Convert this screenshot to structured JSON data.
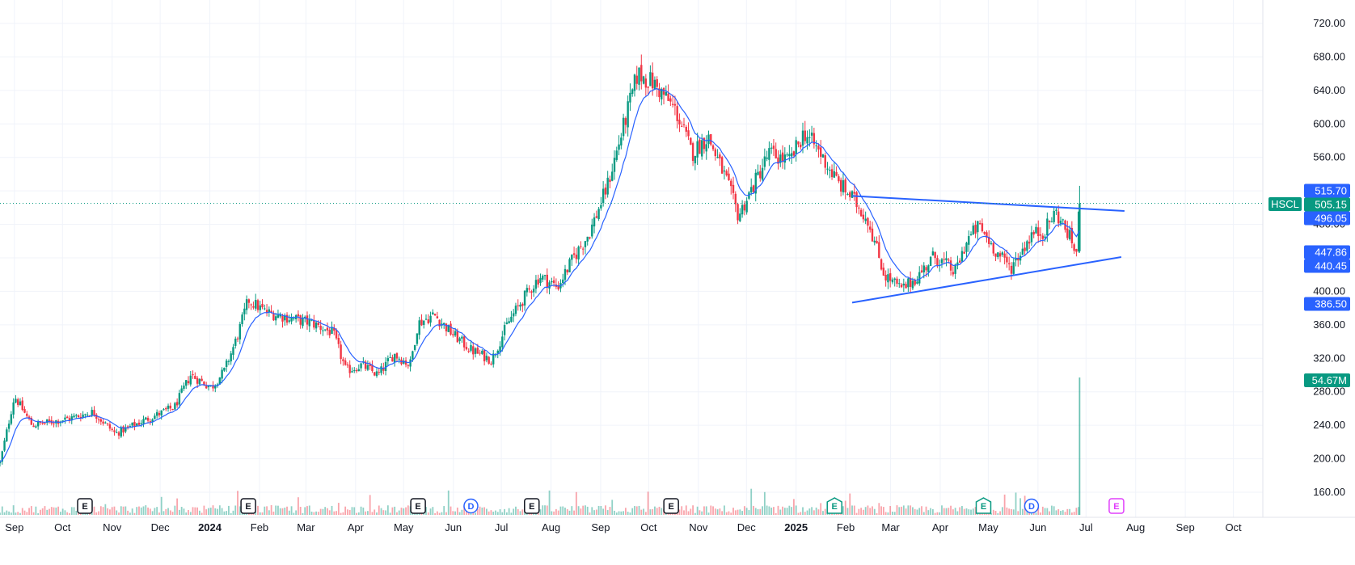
{
  "chart_data": {
    "type": "candlestick",
    "symbol": "HSCL",
    "x_range": [
      "2023-08-23",
      "2025-10-31"
    ],
    "y_range": [
      130,
      735
    ],
    "y_ticks": [
      "720.00",
      "680.00",
      "640.00",
      "600.00",
      "560.00",
      "520.00",
      "480.00",
      "440.00",
      "400.00",
      "360.00",
      "320.00",
      "280.00",
      "240.00",
      "200.00",
      "160.00"
    ],
    "month_labels": [
      {
        "label": "Sep",
        "date": "2023-09-01",
        "bold": false
      },
      {
        "label": "Oct",
        "date": "2023-10-01",
        "bold": false
      },
      {
        "label": "Nov",
        "date": "2023-11-01",
        "bold": false
      },
      {
        "label": "Dec",
        "date": "2023-12-01",
        "bold": false
      },
      {
        "label": "2024",
        "date": "2024-01-01",
        "bold": true
      },
      {
        "label": "Feb",
        "date": "2024-02-01",
        "bold": false
      },
      {
        "label": "Mar",
        "date": "2024-03-01",
        "bold": false
      },
      {
        "label": "Apr",
        "date": "2024-04-01",
        "bold": false
      },
      {
        "label": "May",
        "date": "2024-05-01",
        "bold": false
      },
      {
        "label": "Jun",
        "date": "2024-06-01",
        "bold": false
      },
      {
        "label": "Jul",
        "date": "2024-07-01",
        "bold": false
      },
      {
        "label": "Aug",
        "date": "2024-08-01",
        "bold": false
      },
      {
        "label": "Sep",
        "date": "2024-09-01",
        "bold": false
      },
      {
        "label": "Oct",
        "date": "2024-10-01",
        "bold": false
      },
      {
        "label": "Nov",
        "date": "2024-11-01",
        "bold": false
      },
      {
        "label": "Dec",
        "date": "2024-12-01",
        "bold": false
      },
      {
        "label": "2025",
        "date": "2025-01-01",
        "bold": true
      },
      {
        "label": "Feb",
        "date": "2025-02-01",
        "bold": false
      },
      {
        "label": "Mar",
        "date": "2025-03-01",
        "bold": false
      },
      {
        "label": "Apr",
        "date": "2025-04-01",
        "bold": false
      },
      {
        "label": "May",
        "date": "2025-05-01",
        "bold": false
      },
      {
        "label": "Jun",
        "date": "2025-06-01",
        "bold": false
      },
      {
        "label": "Jul",
        "date": "2025-07-01",
        "bold": false
      },
      {
        "label": "Aug",
        "date": "2025-08-01",
        "bold": false
      },
      {
        "label": "Sep",
        "date": "2025-09-01",
        "bold": false
      },
      {
        "label": "Oct",
        "date": "2025-10-01",
        "bold": false
      }
    ],
    "price_keypoints": [
      [
        "2023-08-23",
        195
      ],
      [
        "2023-09-01",
        275
      ],
      [
        "2023-09-12",
        240
      ],
      [
        "2023-10-05",
        248
      ],
      [
        "2023-10-20",
        256
      ],
      [
        "2023-11-03",
        230
      ],
      [
        "2023-11-20",
        245
      ],
      [
        "2023-12-10",
        262
      ],
      [
        "2023-12-20",
        300
      ],
      [
        "2024-01-02",
        285
      ],
      [
        "2024-01-10",
        305
      ],
      [
        "2024-01-18",
        345
      ],
      [
        "2024-01-25",
        390
      ],
      [
        "2024-02-05",
        375
      ],
      [
        "2024-02-20",
        368
      ],
      [
        "2024-03-05",
        362
      ],
      [
        "2024-03-18",
        350
      ],
      [
        "2024-03-26",
        305
      ],
      [
        "2024-04-05",
        312
      ],
      [
        "2024-04-15",
        300
      ],
      [
        "2024-04-25",
        325
      ],
      [
        "2024-05-05",
        312
      ],
      [
        "2024-05-10",
        362
      ],
      [
        "2024-05-20",
        372
      ],
      [
        "2024-05-31",
        350
      ],
      [
        "2024-06-12",
        330
      ],
      [
        "2024-06-25",
        318
      ],
      [
        "2024-07-05",
        362
      ],
      [
        "2024-07-15",
        392
      ],
      [
        "2024-07-25",
        418
      ],
      [
        "2024-08-05",
        405
      ],
      [
        "2024-08-15",
        440
      ],
      [
        "2024-08-25",
        470
      ],
      [
        "2024-09-05",
        525
      ],
      [
        "2024-09-15",
        595
      ],
      [
        "2024-09-24",
        660
      ],
      [
        "2024-10-03",
        650
      ],
      [
        "2024-10-10",
        635
      ],
      [
        "2024-10-18",
        615
      ],
      [
        "2024-10-28",
        565
      ],
      [
        "2024-11-07",
        585
      ],
      [
        "2024-11-18",
        535
      ],
      [
        "2024-11-26",
        490
      ],
      [
        "2024-12-05",
        525
      ],
      [
        "2024-12-15",
        565
      ],
      [
        "2024-12-28",
        555
      ],
      [
        "2025-01-06",
        590
      ],
      [
        "2025-01-15",
        568
      ],
      [
        "2025-01-27",
        530
      ],
      [
        "2025-02-05",
        512
      ],
      [
        "2025-02-15",
        485
      ],
      [
        "2025-02-25",
        420
      ],
      [
        "2025-03-08",
        402
      ],
      [
        "2025-03-18",
        418
      ],
      [
        "2025-03-28",
        442
      ],
      [
        "2025-04-05",
        432
      ],
      [
        "2025-04-10",
        422
      ],
      [
        "2025-04-18",
        462
      ],
      [
        "2025-04-25",
        478
      ],
      [
        "2025-05-07",
        445
      ],
      [
        "2025-05-15",
        428
      ],
      [
        "2025-05-28",
        468
      ],
      [
        "2025-06-05",
        472
      ],
      [
        "2025-06-12",
        495
      ],
      [
        "2025-06-20",
        468
      ],
      [
        "2025-06-25",
        446
      ],
      [
        "2025-06-27",
        505
      ]
    ],
    "last_bar": {
      "date": "2025-06-27",
      "open": 448,
      "high": 526,
      "low": 446,
      "close": 505.15
    },
    "ema_lag_days": 11,
    "trendlines": [
      {
        "name": "upper",
        "from": [
          "2025-02-05",
          514
        ],
        "to": [
          "2025-07-25",
          496
        ]
      },
      {
        "name": "lower",
        "from": [
          "2025-02-05",
          386.5
        ],
        "to": [
          "2025-07-23",
          441
        ]
      }
    ],
    "current_price": 505.15,
    "price_labels": [
      {
        "value": "515.70",
        "price": 515.7,
        "bg": "#2962ff"
      },
      {
        "value": "505.15",
        "price": 505.15,
        "bg": "#089981"
      },
      {
        "value": "496.05",
        "price": 496.05,
        "bg": "#2962ff"
      },
      {
        "value": "447.86",
        "price": 447.86,
        "bg": "#2962ff"
      },
      {
        "value": "440.45",
        "price": 440.45,
        "bg": "#2962ff"
      },
      {
        "value": "386.50",
        "price": 386.5,
        "bg": "#2962ff"
      }
    ],
    "volume_label": "54.67M",
    "events": [
      {
        "label": "E",
        "date": "2023-10-15",
        "style": "earnings"
      },
      {
        "label": "E",
        "date": "2024-01-25",
        "style": "earnings"
      },
      {
        "label": "E",
        "date": "2024-05-10",
        "style": "earnings"
      },
      {
        "label": "D",
        "date": "2024-06-12",
        "style": "dividend"
      },
      {
        "label": "E",
        "date": "2024-07-20",
        "style": "earnings"
      },
      {
        "label": "E",
        "date": "2024-10-15",
        "style": "earnings"
      },
      {
        "label": "E",
        "date": "2025-01-25",
        "style": "earnings-up"
      },
      {
        "label": "E",
        "date": "2025-04-28",
        "style": "earnings-up"
      },
      {
        "label": "D",
        "date": "2025-05-28",
        "style": "dividend"
      },
      {
        "label": "E",
        "date": "2025-07-20",
        "style": "earnings-future"
      }
    ]
  },
  "colors": {
    "up": "#089981",
    "down": "#f23645",
    "ema": "#2962ff",
    "trendline": "#2962ff",
    "grid": "#f0f3fa",
    "price_line": "#089981",
    "future_event": "#e040fb"
  }
}
